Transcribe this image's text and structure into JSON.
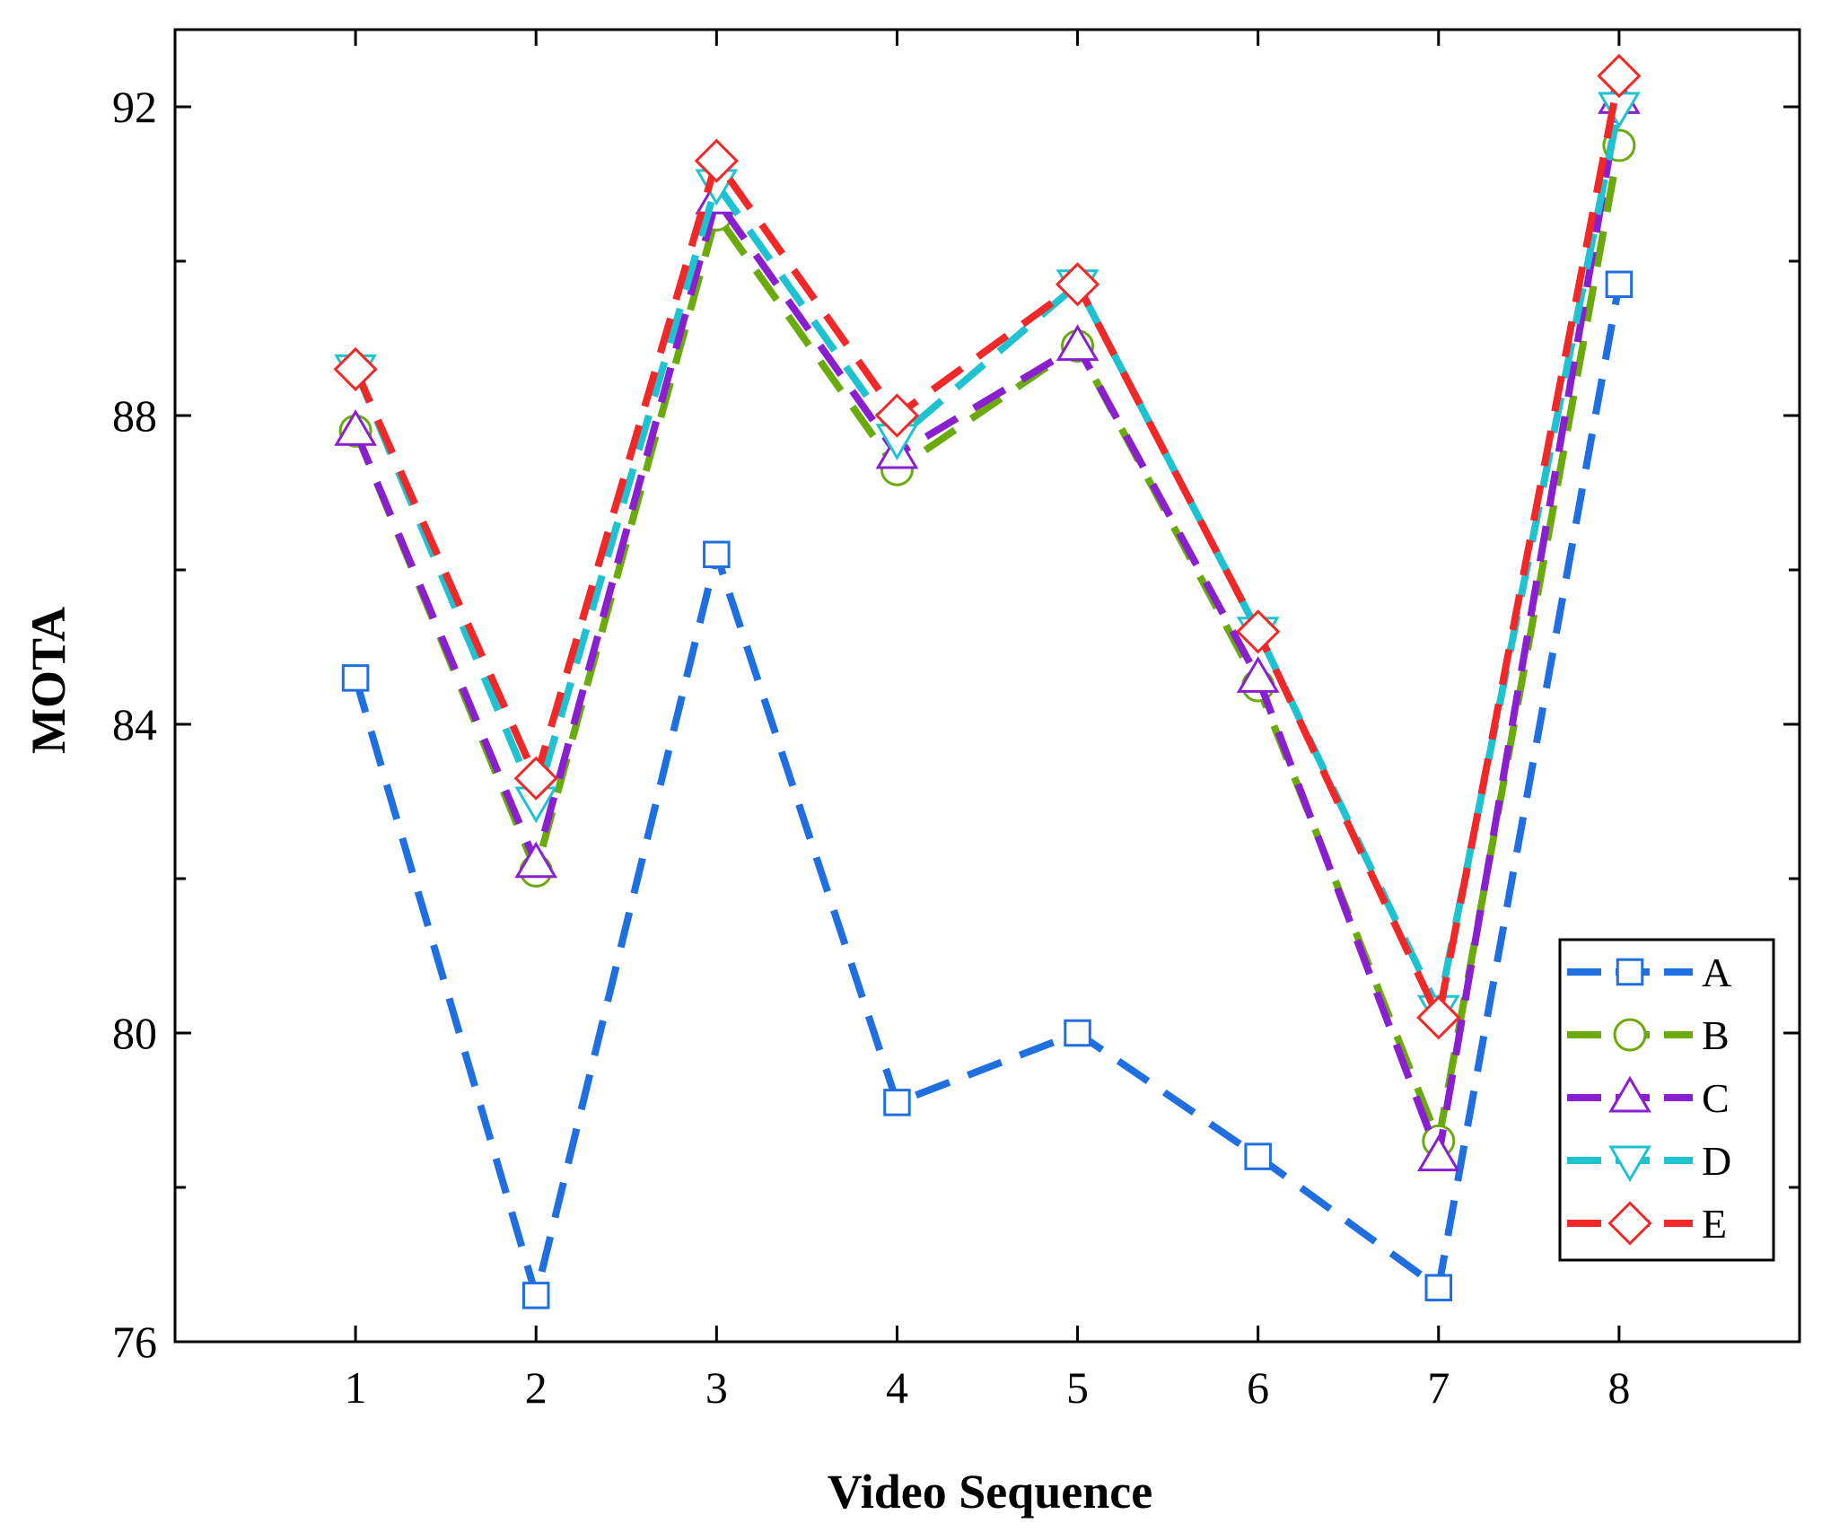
{
  "chart_data": {
    "type": "line",
    "title": "",
    "xlabel": "Video Sequence",
    "ylabel": "MOTA",
    "x": [
      1,
      2,
      3,
      4,
      5,
      6,
      7,
      8
    ],
    "xlim": [
      0,
      9
    ],
    "ylim": [
      76,
      93
    ],
    "yticks": [
      76,
      80,
      84,
      88,
      92
    ],
    "ytick_minor": [
      78,
      82,
      86,
      90
    ],
    "grid": false,
    "legend_position": "bottom-right",
    "line_style": "dashed",
    "series": [
      {
        "name": "A",
        "marker": "square",
        "color": "#1f6fe0",
        "values": [
          84.6,
          76.6,
          86.2,
          79.1,
          80.0,
          78.4,
          76.7,
          89.7
        ]
      },
      {
        "name": "B",
        "marker": "circle",
        "color": "#6aaa0a",
        "values": [
          87.8,
          82.1,
          90.6,
          87.3,
          88.9,
          84.5,
          78.6,
          91.5
        ]
      },
      {
        "name": "C",
        "marker": "triangle-up",
        "color": "#8a1fd0",
        "values": [
          87.8,
          82.2,
          90.8,
          87.5,
          88.9,
          84.6,
          78.4,
          92.1
        ]
      },
      {
        "name": "D",
        "marker": "triangle-down",
        "color": "#1ec2d0",
        "values": [
          88.6,
          83.0,
          91.0,
          87.7,
          89.7,
          85.2,
          80.3,
          92.0
        ]
      },
      {
        "name": "E",
        "marker": "diamond",
        "color": "#f02828",
        "values": [
          88.6,
          83.3,
          91.3,
          88.0,
          89.7,
          85.2,
          80.2,
          92.4
        ]
      }
    ]
  }
}
